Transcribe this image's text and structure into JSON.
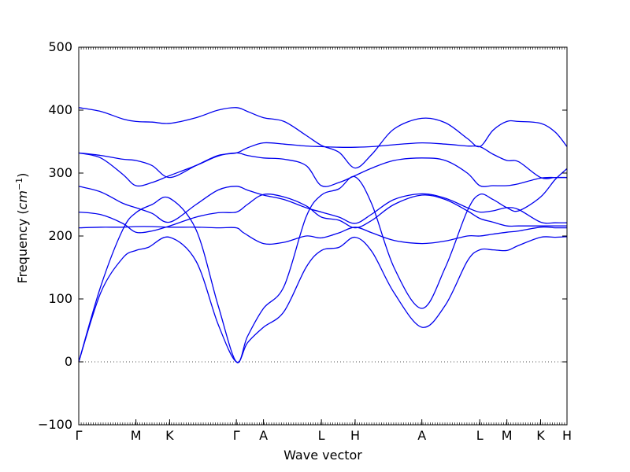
{
  "chart_data": {
    "type": "line",
    "xlabel": "Wave vector",
    "ylabel_main": "Frequency (",
    "ylabel_unit": "cm",
    "ylabel_exp": "−1",
    "ylabel_close": ")",
    "ylim": [
      -100,
      500
    ],
    "yticks": [
      -100,
      0,
      100,
      200,
      300,
      400,
      500
    ],
    "yticks_text": [
      "−100",
      "0",
      "100",
      "200",
      "300",
      "400",
      "500"
    ],
    "xlim": [
      0,
      6.66
    ],
    "high_symmetry_points": [
      {
        "label": "Γ",
        "x": 0.0
      },
      {
        "label": "M",
        "x": 0.78
      },
      {
        "label": "K",
        "x": 1.24
      },
      {
        "label": "Γ",
        "x": 2.15
      },
      {
        "label": "A",
        "x": 2.52
      },
      {
        "label": "L",
        "x": 3.31
      },
      {
        "label": "H",
        "x": 3.77
      },
      {
        "label": "A",
        "x": 4.68
      },
      {
        "label": "L",
        "x": 5.47
      },
      {
        "label": "M",
        "x": 5.84
      },
      {
        "label": "K",
        "x": 6.3
      },
      {
        "label": "H",
        "x": 6.66
      }
    ],
    "zero_line": true,
    "line_color": "#0000ee",
    "zero_line_color": "#555555",
    "series": [
      {
        "x": [
          0,
          0.3,
          0.6,
          0.78,
          0.95,
          1.24,
          1.6,
          1.9,
          2.15,
          2.3,
          2.52,
          2.8,
          3.1,
          3.31,
          3.55,
          3.77,
          4.0,
          4.3,
          4.68,
          5.0,
          5.3,
          5.47,
          5.65,
          5.84,
          6.0,
          6.3,
          6.5,
          6.66
        ],
        "y": [
          0,
          110,
          165,
          177,
          182,
          198,
          160,
          60,
          0,
          30,
          55,
          80,
          150,
          177,
          182,
          198,
          175,
          110,
          55,
          90,
          160,
          178,
          178,
          177,
          185,
          198,
          198,
          199
        ]
      },
      {
        "x": [
          0,
          0.3,
          0.6,
          0.78,
          1.0,
          1.24,
          1.6,
          1.9,
          2.15,
          2.3,
          2.52,
          2.8,
          3.1,
          3.31,
          3.55,
          3.77,
          4.0,
          4.3,
          4.68,
          5.0,
          5.3,
          5.47,
          5.65,
          5.84,
          6.0,
          6.3,
          6.5,
          6.66
        ],
        "y": [
          0,
          120,
          210,
          237,
          250,
          260,
          210,
          90,
          0,
          40,
          85,
          120,
          230,
          265,
          275,
          294,
          250,
          150,
          85,
          150,
          240,
          266,
          258,
          245,
          240,
          262,
          290,
          307
        ]
      },
      {
        "x": [
          0,
          0.3,
          0.6,
          0.78,
          1.0,
          1.24,
          1.6,
          1.9,
          2.15,
          2.25,
          2.52,
          2.8,
          3.1,
          3.31,
          3.55,
          3.77,
          4.0,
          4.3,
          4.68,
          5.0,
          5.3,
          5.47,
          5.65,
          5.84,
          6.0,
          6.3,
          6.5,
          6.66
        ],
        "y": [
          213,
          214,
          214,
          215,
          215,
          214,
          214,
          213,
          213,
          205,
          188,
          190,
          200,
          197,
          205,
          214,
          205,
          193,
          188,
          192,
          200,
          200,
          203,
          206,
          208,
          214,
          213,
          213
        ]
      },
      {
        "x": [
          0,
          0.3,
          0.6,
          0.78,
          1.0,
          1.24,
          1.6,
          1.9,
          2.15,
          2.3,
          2.52,
          2.8,
          3.1,
          3.31,
          3.55,
          3.77,
          4.0,
          4.3,
          4.68,
          5.0,
          5.3,
          5.47,
          5.65,
          5.84,
          6.0,
          6.3,
          6.5,
          6.66
        ],
        "y": [
          238,
          234,
          220,
          206,
          208,
          216,
          230,
          237,
          238,
          250,
          266,
          262,
          248,
          230,
          225,
          213,
          225,
          250,
          265,
          258,
          240,
          228,
          222,
          216,
          216,
          216,
          216,
          216
        ]
      },
      {
        "x": [
          0,
          0.3,
          0.6,
          0.78,
          1.0,
          1.24,
          1.6,
          1.9,
          2.15,
          2.3,
          2.52,
          2.8,
          3.1,
          3.31,
          3.55,
          3.77,
          4.0,
          4.3,
          4.68,
          5.0,
          5.3,
          5.47,
          5.65,
          5.84,
          6.0,
          6.3,
          6.5,
          6.66
        ],
        "y": [
          279,
          270,
          252,
          245,
          236,
          222,
          250,
          273,
          279,
          273,
          265,
          258,
          245,
          238,
          230,
          220,
          235,
          258,
          267,
          260,
          245,
          238,
          240,
          245,
          242,
          222,
          221,
          221
        ]
      },
      {
        "x": [
          0,
          0.3,
          0.6,
          0.78,
          1.0,
          1.24,
          1.6,
          1.9,
          2.15,
          2.3,
          2.52,
          2.8,
          3.1,
          3.31,
          3.55,
          3.77,
          4.0,
          4.3,
          4.68,
          5.0,
          5.3,
          5.47,
          5.65,
          5.84,
          6.0,
          6.3,
          6.5,
          6.66
        ],
        "y": [
          332,
          324,
          298,
          280,
          285,
          296,
          312,
          327,
          332,
          328,
          324,
          322,
          312,
          280,
          285,
          296,
          308,
          320,
          324,
          320,
          300,
          280,
          280,
          280,
          283,
          292,
          293,
          293
        ]
      },
      {
        "x": [
          0,
          0.3,
          0.6,
          0.78,
          1.0,
          1.24,
          1.6,
          1.9,
          2.15,
          2.3,
          2.52,
          2.8,
          3.1,
          3.31,
          3.55,
          3.77,
          4.0,
          4.3,
          4.68,
          5.0,
          5.3,
          5.47,
          5.65,
          5.84,
          6.0,
          6.3,
          6.5,
          6.66
        ],
        "y": [
          332,
          328,
          322,
          320,
          312,
          293,
          312,
          328,
          332,
          340,
          348,
          346,
          343,
          342,
          341,
          341,
          342,
          345,
          348,
          346,
          343,
          342,
          330,
          320,
          318,
          293,
          293,
          293
        ]
      },
      {
        "x": [
          0,
          0.3,
          0.6,
          0.78,
          1.0,
          1.24,
          1.6,
          1.9,
          2.15,
          2.3,
          2.52,
          2.8,
          3.1,
          3.31,
          3.55,
          3.77,
          4.0,
          4.3,
          4.68,
          5.0,
          5.3,
          5.47,
          5.65,
          5.84,
          6.0,
          6.3,
          6.5,
          6.66
        ],
        "y": [
          404,
          398,
          386,
          382,
          381,
          379,
          388,
          400,
          404,
          398,
          388,
          382,
          360,
          344,
          333,
          308,
          330,
          370,
          387,
          380,
          355,
          342,
          368,
          382,
          382,
          379,
          365,
          342
        ]
      }
    ]
  }
}
